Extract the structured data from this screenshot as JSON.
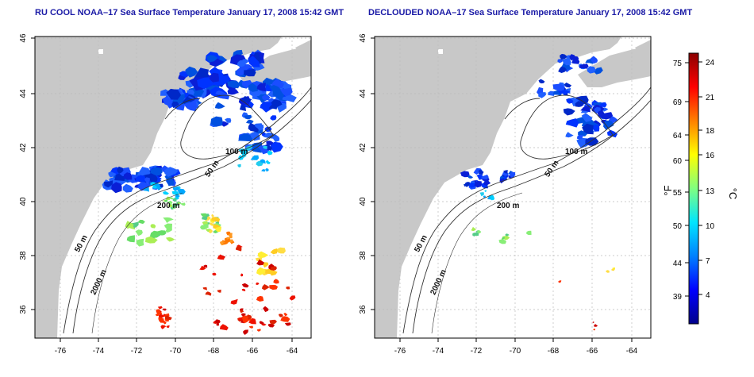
{
  "panels": [
    {
      "title": "RU COOL NOAA–17 Sea Surface Temperature January 17, 2008 15:42 GMT"
    },
    {
      "title": "DECLOUDED NOAA–17 Sea Surface Temperature January 17, 2008 15:42 GMT"
    }
  ],
  "map": {
    "lon_ticks": [
      "-76",
      "-74",
      "-72",
      "-70",
      "-68",
      "-66",
      "-64"
    ],
    "lat_ticks": [
      "36",
      "38",
      "40",
      "42",
      "44",
      "46"
    ],
    "depth_labels": [
      "200 m",
      "100 m",
      "50 m",
      "50 m",
      "2000 m"
    ],
    "colors": {
      "land": "#c8c8c8",
      "ocean": "#ffffff",
      "contour": "#333333",
      "grid": "#bbbbbb"
    }
  },
  "colorbar": {
    "f_label": "°F",
    "c_label": "°C",
    "f_ticks": [
      "75",
      "69",
      "64",
      "60",
      "55",
      "50",
      "44",
      "39"
    ],
    "c_ticks": [
      "24",
      "21",
      "18",
      "16",
      "13",
      "10",
      "7",
      "4"
    ],
    "colors": [
      "#00008b",
      "#0000ff",
      "#0080ff",
      "#00e5ff",
      "#80ff80",
      "#ffff00",
      "#ff8000",
      "#ff0000",
      "#8b0000"
    ]
  }
}
